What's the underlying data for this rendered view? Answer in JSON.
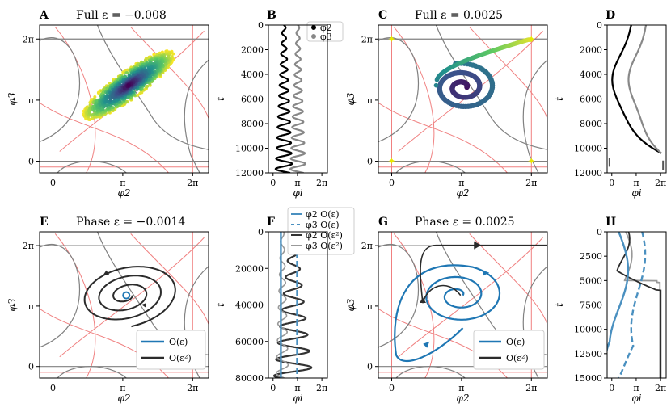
{
  "chart_data": [
    {
      "id": "A",
      "type": "scatter",
      "letter": "A",
      "title": "Full ε = −0.008",
      "xlabel": "φ2",
      "ylabel": "φ3",
      "xticks": [
        "0",
        "π",
        "2π"
      ],
      "yticks": [
        "0",
        "π",
        "2π"
      ],
      "xlim": [
        -0.6,
        7.0
      ],
      "ylim": [
        -0.6,
        7.0
      ]
    },
    {
      "id": "B",
      "type": "line",
      "letter": "B",
      "title": "",
      "xlabel": "φi",
      "ylabel": "t",
      "xticks": [
        "0",
        "π",
        "2π"
      ],
      "yticks": [
        "0",
        "2000",
        "4000",
        "6000",
        "8000",
        "10000",
        "12000"
      ],
      "ylim": [
        0,
        12000
      ],
      "legend": [
        "φ2",
        "φ3"
      ],
      "series": [
        {
          "name": "φ2",
          "color": "#000000",
          "center": 1.4,
          "amp_start": 0.2,
          "amp_end": 1.1
        },
        {
          "name": "φ3",
          "color": "#888888",
          "center": 3.2,
          "amp_start": 0.15,
          "amp_end": 1.0
        }
      ]
    },
    {
      "id": "C",
      "type": "scatter",
      "letter": "C",
      "title": "Full ε = 0.0025",
      "xlabel": "φ2",
      "ylabel": "φ3",
      "xticks": [
        "0",
        "π",
        "2π"
      ],
      "yticks": [
        "0",
        "π",
        "2π"
      ]
    },
    {
      "id": "D",
      "type": "line",
      "letter": "D",
      "title": "",
      "xlabel": "φi",
      "ylabel": "t",
      "xticks": [
        "0",
        "π",
        "2π"
      ],
      "yticks": [
        "0",
        "2000",
        "4000",
        "6000",
        "8000",
        "10000",
        "12000"
      ],
      "ylim": [
        0,
        12000
      ]
    },
    {
      "id": "E",
      "type": "line",
      "letter": "E",
      "title": "Phase ε = −0.0014",
      "xlabel": "φ2",
      "ylabel": "φ3",
      "xticks": [
        "0",
        "π",
        "2π"
      ],
      "yticks": [
        "0",
        "π",
        "2π"
      ],
      "legend": [
        "O(ε)",
        "O(ε²)"
      ]
    },
    {
      "id": "F",
      "type": "line",
      "letter": "F",
      "title": "",
      "xlabel": "φi",
      "ylabel": "t",
      "xticks": [
        "0",
        "π",
        "2π"
      ],
      "yticks": [
        "0",
        "20000",
        "40000",
        "60000",
        "80000"
      ],
      "ylim": [
        0,
        80000
      ],
      "legend": [
        "φ2 O(ε)",
        "φ3 O(ε)",
        "φ2 O(ε²)",
        "φ3 O(ε²)"
      ]
    },
    {
      "id": "G",
      "type": "line",
      "letter": "G",
      "title": "Phase ε = 0.0025",
      "xlabel": "φ2",
      "ylabel": "φ3",
      "xticks": [
        "0",
        "π",
        "2π"
      ],
      "yticks": [
        "0",
        "π",
        "2π"
      ],
      "legend": [
        "O(ε)",
        "O(ε²)"
      ]
    },
    {
      "id": "H",
      "type": "line",
      "letter": "H",
      "title": "",
      "xlabel": "φi",
      "ylabel": "t",
      "xticks": [
        "0",
        "π",
        "2π"
      ],
      "yticks": [
        "0",
        "2500",
        "5000",
        "7500",
        "10000",
        "12500",
        "15000"
      ],
      "ylim": [
        0,
        15000
      ]
    }
  ],
  "colors": {
    "nullcline_red": "#f08080",
    "nullcline_gray": "#808080",
    "blue": "#1f77b4",
    "dark": "#2b2b2b",
    "lightblue": "#4a90c0"
  }
}
